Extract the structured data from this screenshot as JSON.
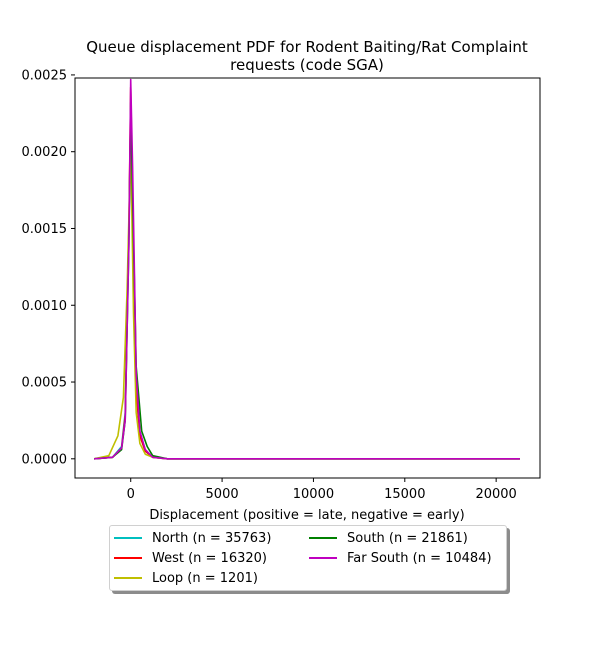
{
  "chart_data": {
    "type": "line",
    "title": "Queue displacement PDF for Rodent Baiting/Rat Complaint requests (code SGA)",
    "title_lines": [
      "Queue displacement PDF for Rodent Baiting/Rat Complaint",
      "requests (code SGA)"
    ],
    "xlabel": "Displacement (positive = late, negative = early)",
    "ylabel": "",
    "xlim": [
      -3050,
      22400
    ],
    "ylim": [
      -0.000125,
      0.00248
    ],
    "xticks": [
      0,
      5000,
      10000,
      15000,
      20000
    ],
    "xtick_labels": [
      "0",
      "5000",
      "10000",
      "15000",
      "20000"
    ],
    "yticks": [
      0,
      0.0005,
      0.001,
      0.0015,
      0.002,
      0.0025
    ],
    "ytick_labels": [
      "0.0000",
      "0.0005",
      "0.0010",
      "0.0015",
      "0.0020",
      "0.0025"
    ],
    "grid": false,
    "legend_position": "below",
    "series": [
      {
        "name": "North (n = 35763)",
        "color": "#00bfbf",
        "x": [
          -2000,
          -1000,
          -500,
          -300,
          -100,
          0,
          100,
          300,
          500,
          800,
          1200,
          2000,
          21300
        ],
        "y": [
          0,
          1e-05,
          8e-05,
          0.0003,
          0.0015,
          0.00228,
          0.0016,
          0.00045,
          0.00015,
          5e-05,
          1e-05,
          0,
          0
        ]
      },
      {
        "name": "West (n = 16320)",
        "color": "#ff0000",
        "x": [
          -2000,
          -1000,
          -500,
          -300,
          -100,
          0,
          100,
          300,
          500,
          800,
          1200,
          2000,
          21300
        ],
        "y": [
          0,
          1e-05,
          7e-05,
          0.00028,
          0.0015,
          0.00242,
          0.0017,
          0.00045,
          0.00015,
          5e-05,
          1e-05,
          0,
          0
        ]
      },
      {
        "name": "Loop (n = 1201)",
        "color": "#bfbf00",
        "x": [
          -2000,
          -1200,
          -700,
          -400,
          -200,
          0,
          150,
          300,
          500,
          800,
          1200,
          2000,
          21300
        ],
        "y": [
          0,
          2e-05,
          0.00015,
          0.0004,
          0.0011,
          0.00205,
          0.00095,
          0.0003,
          0.0001,
          3e-05,
          1e-05,
          0,
          0
        ]
      },
      {
        "name": "South (n = 21861)",
        "color": "#008000",
        "x": [
          -2000,
          -1000,
          -500,
          -300,
          -100,
          0,
          100,
          300,
          600,
          900,
          1200,
          2000,
          21300
        ],
        "y": [
          0,
          1e-05,
          6e-05,
          0.00025,
          0.0014,
          0.00232,
          0.0017,
          0.0006,
          0.00018,
          8e-05,
          2e-05,
          0,
          0
        ]
      },
      {
        "name": "Far South (n = 10484)",
        "color": "#bf00bf",
        "x": [
          -2000,
          -1000,
          -500,
          -300,
          -100,
          0,
          100,
          300,
          500,
          800,
          1200,
          2000,
          21300
        ],
        "y": [
          0,
          1e-05,
          7e-05,
          0.00025,
          0.0014,
          0.00247,
          0.0019,
          0.00055,
          0.00018,
          6e-05,
          1e-05,
          0,
          0
        ]
      }
    ]
  }
}
